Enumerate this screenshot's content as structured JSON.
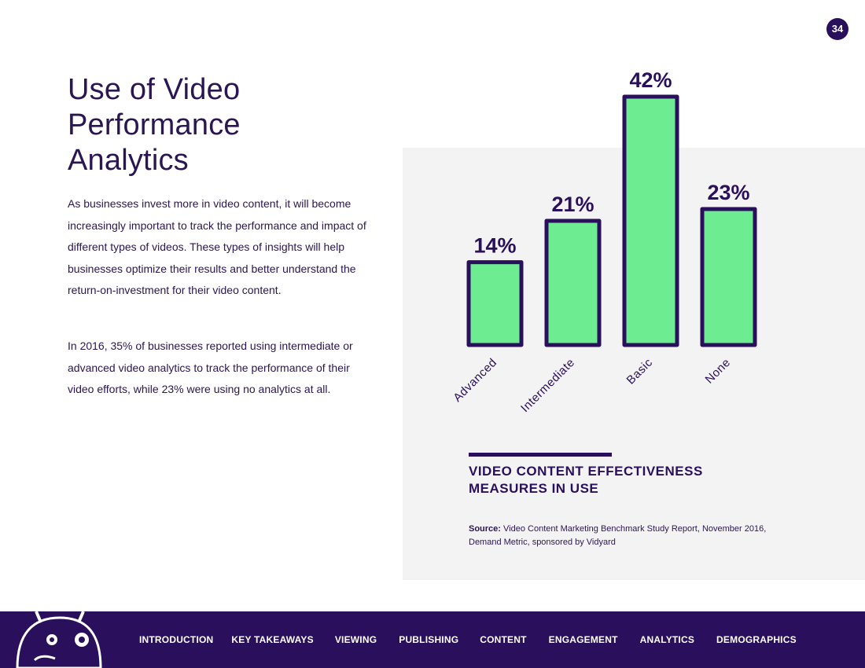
{
  "page_number": "34",
  "heading": {
    "title": "Use of Video Performance Analytics"
  },
  "body": {
    "paragraph_1": "As businesses invest more in video content, it will become increasingly important to track the performance and impact of different types of videos. These types of insights will help businesses optimize their results and better understand the return-on-investment for their video content.",
    "paragraph_2": "In 2016, 35% of businesses reported using intermediate or advanced video analytics to track the performance of their video efforts, while 23% were using no analytics at all."
  },
  "chart_data": {
    "type": "bar",
    "title": "VIDEO CONTENT EFFECTIVENESS MEASURES IN USE",
    "categories": [
      "Advanced",
      "Intermediate",
      "Basic",
      "None"
    ],
    "values": [
      14,
      21,
      42,
      23
    ],
    "value_labels": [
      "14%",
      "21%",
      "42%",
      "23%"
    ],
    "unit": "%",
    "xlabel": "",
    "ylabel": "",
    "ylim": [
      0,
      42
    ],
    "grid": false,
    "bar_color": "#6eec92",
    "bar_outline": "#2a0f5c"
  },
  "source": {
    "label": "Source:",
    "text": "Video Content Marketing Benchmark Study Report, November 2016, Demand Metric, sponsored by Vidyard"
  },
  "footer": {
    "nav": [
      "INTRODUCTION",
      "KEY TAKEAWAYS",
      "VIEWING",
      "PUBLISHING",
      "CONTENT",
      "ENGAGEMENT",
      "ANALYTICS",
      "DEMOGRAPHICS"
    ],
    "background": "#2a0f5c",
    "mascot_icon": "robot-mascot-icon"
  }
}
